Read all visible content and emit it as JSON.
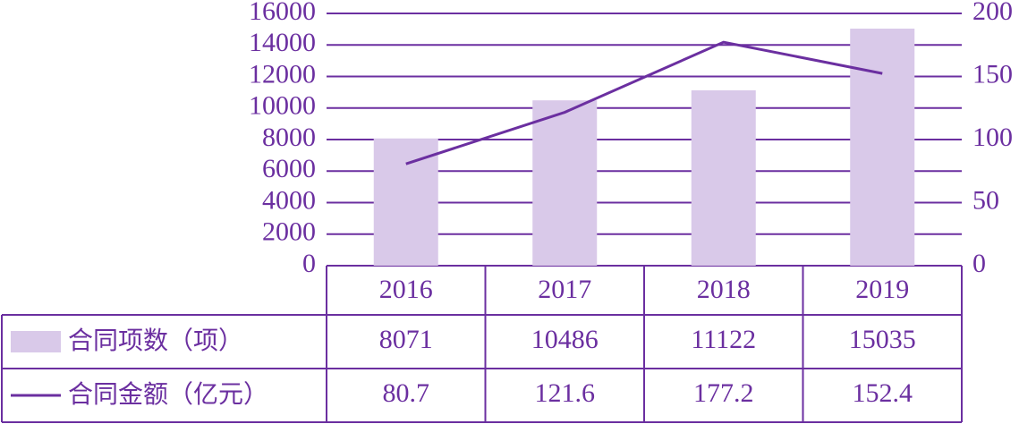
{
  "chart_data": {
    "type": "bar",
    "categories": [
      "2016",
      "2017",
      "2018",
      "2019"
    ],
    "series": [
      {
        "name": "合同项数（项）",
        "type": "bar",
        "color": "#d9c9e9",
        "values": [
          8071,
          10486,
          11122,
          15035
        ]
      },
      {
        "name": "合同金额（亿元）",
        "type": "line",
        "axis": "y2",
        "color": "#6b2fa0",
        "values": [
          80.7,
          121.6,
          177.2,
          152.4
        ]
      }
    ],
    "ylim": [
      0,
      16000
    ],
    "yticks": [
      0,
      2000,
      4000,
      6000,
      8000,
      10000,
      12000,
      14000,
      16000
    ],
    "y2lim": [
      0,
      200
    ],
    "y2ticks": [
      0,
      50,
      100,
      150,
      200
    ],
    "grid": true,
    "axis_color": "#6b2fa0"
  }
}
